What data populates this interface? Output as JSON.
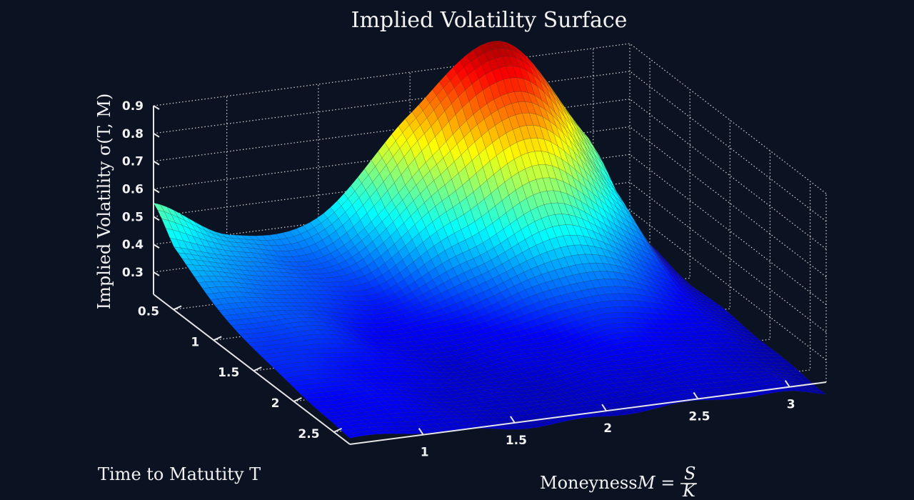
{
  "chart_data": {
    "type": "surface",
    "title": "Implied Volatility Surface",
    "zlabel": "Implied Volatility σ(T, M)",
    "ylabel": "Time to Matutity T",
    "xlabel": "Moneyness M = S/K",
    "x_name": "Moneyness",
    "x_ticks": [
      1,
      1.5,
      2,
      2.5,
      3
    ],
    "x_tick_labels": [
      "1",
      "1.5",
      "2",
      "2.5",
      "3"
    ],
    "xlim": [
      0.6,
      3.2
    ],
    "y_ticks": [
      0.5,
      1,
      1.5,
      2,
      2.5
    ],
    "y_tick_labels": [
      "0.5",
      "1",
      "1.5",
      "2",
      "2.5"
    ],
    "ylim": [
      0.25,
      2.7
    ],
    "z_ticks": [
      0.3,
      0.4,
      0.5,
      0.6,
      0.7,
      0.8,
      0.9
    ],
    "z_tick_labels": [
      "0.3",
      "0.4",
      "0.5",
      "0.6",
      "0.7",
      "0.8",
      "0.9"
    ],
    "zlim": [
      0.22,
      0.9
    ],
    "colormap": "jet",
    "color_range": [
      0.15,
      1.0
    ],
    "grid": true,
    "grid_moneyness": [
      0.6,
      1.0,
      1.5,
      2.0,
      2.5,
      3.0,
      3.2
    ],
    "grid_time": [
      0.25,
      0.5,
      1.0,
      1.5,
      2.0,
      2.5,
      2.7
    ],
    "surface_grid_values": [
      [
        0.55,
        0.4,
        0.42,
        0.75,
        0.97,
        0.56,
        0.24
      ],
      [
        0.45,
        0.37,
        0.36,
        0.65,
        0.85,
        0.47,
        0.23
      ],
      [
        0.35,
        0.33,
        0.28,
        0.4,
        0.52,
        0.32,
        0.2
      ],
      [
        0.3,
        0.29,
        0.24,
        0.27,
        0.32,
        0.25,
        0.2
      ],
      [
        0.27,
        0.26,
        0.22,
        0.23,
        0.25,
        0.22,
        0.19
      ],
      [
        0.25,
        0.24,
        0.21,
        0.21,
        0.22,
        0.21,
        0.18
      ],
      [
        0.24,
        0.23,
        0.2,
        0.2,
        0.21,
        0.2,
        0.18
      ]
    ],
    "colors": {
      "background": "#0b1222",
      "text": "#f2f2f2",
      "axis": "#e6e6e6",
      "mesh": "#3a3a3a"
    }
  }
}
